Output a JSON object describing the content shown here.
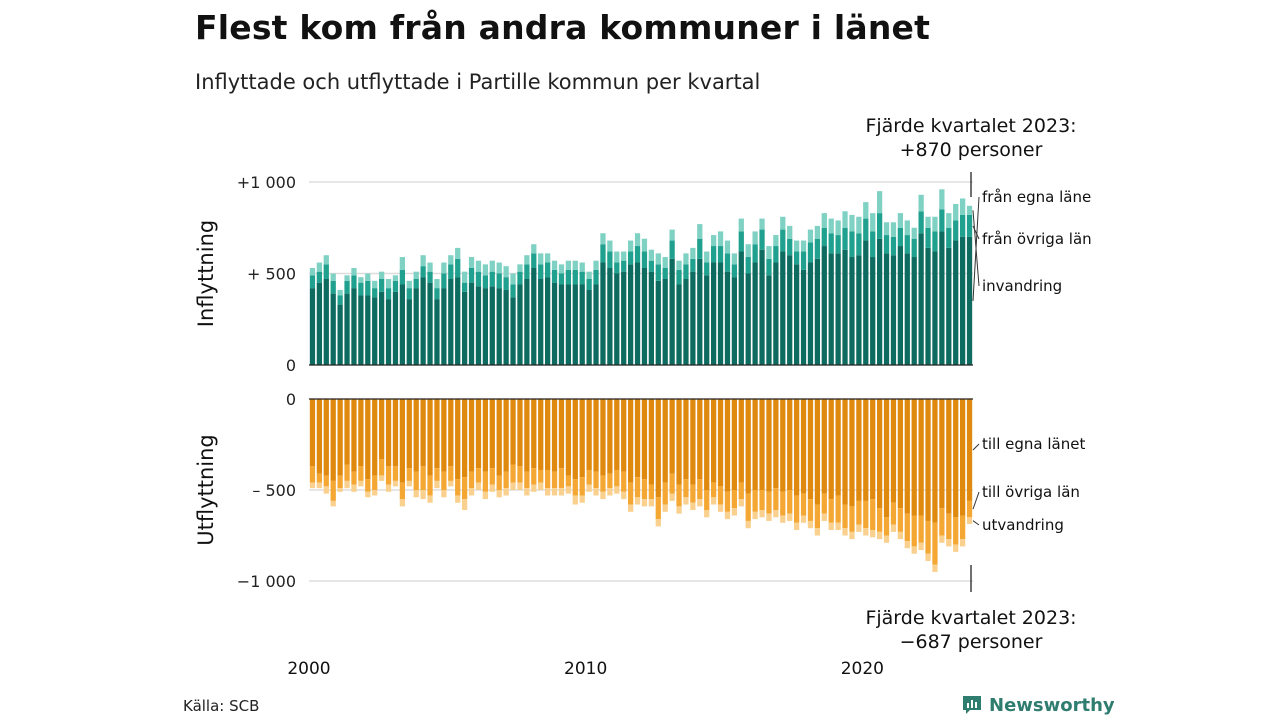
{
  "header": {
    "title": "Flest kom från andra kommuner i länet",
    "subtitle": "Inflyttade och utflyttade i Partille kommun per kvartal"
  },
  "footer": {
    "source": "Källa: SCB",
    "brand": "Newsworthy"
  },
  "colors": {
    "in_egna": "#0e6b5f",
    "in_ovriga": "#20a08e",
    "in_invandring": "#7fd1c3",
    "out_egna": "#e0890f",
    "out_ovriga": "#f4a733",
    "out_utvandring": "#f9d08e",
    "grid": "#dddddd",
    "brand": "#2e7d6e"
  },
  "chart_data": {
    "type": "bar",
    "stacked": true,
    "x_start_year": 2000,
    "periods_per_year": 4,
    "xticks": [
      "2000",
      "2010",
      "2020"
    ],
    "panels": [
      {
        "ylabel": "Inflyttning",
        "ylim": [
          0,
          1000
        ],
        "yticks": [
          {
            "value": 1000,
            "label": "+1 000"
          },
          {
            "value": 500,
            "label": "+  500"
          },
          {
            "value": 0,
            "label": "0"
          }
        ],
        "annotation": [
          "Fjärde kvartalet 2023:",
          "+870 personer"
        ],
        "series": [
          {
            "name": "från egna läne",
            "values": [
              420,
              450,
              470,
              390,
              330,
              390,
              420,
              380,
              380,
              370,
              400,
              360,
              400,
              440,
              360,
              420,
              480,
              450,
              360,
              420,
              470,
              480,
              400,
              450,
              430,
              420,
              430,
              420,
              410,
              370,
              440,
              470,
              530,
              470,
              480,
              450,
              440,
              440,
              440,
              440,
              410,
              440,
              560,
              530,
              500,
              510,
              550,
              560,
              530,
              510,
              460,
              470,
              580,
              440,
              470,
              510,
              580,
              490,
              560,
              560,
              510,
              480,
              620,
              500,
              560,
              630,
              490,
              560,
              620,
              600,
              550,
              520,
              560,
              580,
              650,
              610,
              610,
              630,
              590,
              600,
              680,
              590,
              690,
              610,
              600,
              650,
              610,
              590,
              720,
              640,
              620,
              730,
              640,
              680,
              700,
              700
            ]
          },
          {
            "name": "från övriga län",
            "values": [
              70,
              60,
              80,
              70,
              50,
              70,
              70,
              70,
              80,
              50,
              70,
              60,
              60,
              80,
              60,
              50,
              60,
              60,
              60,
              80,
              80,
              100,
              50,
              80,
              80,
              70,
              80,
              80,
              70,
              70,
              70,
              80,
              80,
              80,
              80,
              70,
              60,
              80,
              80,
              70,
              60,
              80,
              100,
              90,
              60,
              60,
              70,
              90,
              90,
              60,
              90,
              60,
              100,
              80,
              80,
              70,
              110,
              70,
              90,
              90,
              100,
              70,
              110,
              90,
              100,
              110,
              90,
              90,
              120,
              90,
              70,
              100,
              110,
              110,
              100,
              110,
              100,
              120,
              140,
              120,
              120,
              140,
              140,
              100,
              100,
              100,
              100,
              100,
              120,
              110,
              110,
              120,
              110,
              110,
              120,
              120
            ]
          },
          {
            "name": "invandring",
            "values": [
              40,
              50,
              50,
              40,
              30,
              30,
              40,
              30,
              40,
              40,
              40,
              50,
              30,
              70,
              40,
              40,
              60,
              50,
              50,
              60,
              50,
              60,
              60,
              60,
              60,
              60,
              60,
              60,
              60,
              60,
              40,
              50,
              50,
              60,
              50,
              50,
              50,
              50,
              50,
              50,
              40,
              50,
              60,
              60,
              60,
              50,
              60,
              70,
              70,
              60,
              60,
              60,
              60,
              50,
              60,
              60,
              80,
              60,
              60,
              80,
              70,
              60,
              70,
              70,
              70,
              60,
              70,
              60,
              70,
              70,
              60,
              60,
              70,
              70,
              80,
              80,
              80,
              90,
              90,
              90,
              90,
              100,
              120,
              70,
              80,
              80,
              80,
              60,
              90,
              60,
              80,
              110,
              80,
              90,
              90,
              50
            ]
          }
        ]
      },
      {
        "ylabel": "Utflyttning",
        "ylim": [
          -1000,
          0
        ],
        "yticks": [
          {
            "value": 0,
            "label": "0"
          },
          {
            "value": -500,
            "label": "–  500"
          },
          {
            "value": -1000,
            "label": "−1 000"
          }
        ],
        "annotation": [
          "Fjärde kvartalet 2023:",
          "−687 personer"
        ],
        "series": [
          {
            "name": "till egna länet",
            "values": [
              -370,
              -410,
              -420,
              -450,
              -420,
              -360,
              -400,
              -370,
              -440,
              -420,
              -330,
              -370,
              -370,
              -460,
              -380,
              -400,
              -370,
              -420,
              -380,
              -400,
              -370,
              -440,
              -430,
              -400,
              -380,
              -400,
              -380,
              -420,
              -400,
              -360,
              -370,
              -400,
              -380,
              -390,
              -390,
              -400,
              -380,
              -420,
              -440,
              -430,
              -390,
              -400,
              -420,
              -410,
              -390,
              -400,
              -460,
              -430,
              -440,
              -470,
              -540,
              -460,
              -410,
              -470,
              -440,
              -470,
              -440,
              -500,
              -460,
              -480,
              -510,
              -500,
              -460,
              -520,
              -500,
              -500,
              -510,
              -490,
              -510,
              -500,
              -530,
              -520,
              -550,
              -580,
              -520,
              -550,
              -530,
              -580,
              -590,
              -560,
              -560,
              -550,
              -600,
              -650,
              -570,
              -600,
              -630,
              -640,
              -640,
              -670,
              -680,
              -600,
              -630,
              -650,
              -640,
              -560
            ]
          },
          {
            "name": "till övriga län",
            "values": [
              -90,
              -50,
              -60,
              -110,
              -70,
              -90,
              -70,
              -80,
              -70,
              -80,
              -90,
              -100,
              -80,
              -90,
              -70,
              -100,
              -130,
              -110,
              -70,
              -100,
              -80,
              -90,
              -120,
              -90,
              -80,
              -110,
              -90,
              -80,
              -90,
              -100,
              -90,
              -90,
              -90,
              -70,
              -100,
              -90,
              -110,
              -60,
              -90,
              -100,
              -80,
              -90,
              -90,
              -80,
              -90,
              -110,
              -120,
              -110,
              -110,
              -80,
              -120,
              -120,
              -110,
              -120,
              -100,
              -100,
              -110,
              -110,
              -80,
              -100,
              -110,
              -100,
              -90,
              -150,
              -120,
              -110,
              -120,
              -120,
              -130,
              -130,
              -150,
              -120,
              -120,
              -130,
              -110,
              -130,
              -150,
              -130,
              -140,
              -130,
              -150,
              -170,
              -130,
              -100,
              -120,
              -130,
              -150,
              -170,
              -150,
              -180,
              -230,
              -150,
              -140,
              -150,
              -130,
              -90
            ]
          },
          {
            "name": "utvandring",
            "values": [
              -30,
              -30,
              -40,
              -30,
              -20,
              -40,
              -40,
              -30,
              -30,
              -30,
              -30,
              -40,
              -30,
              -40,
              -30,
              -40,
              -50,
              -40,
              -40,
              -40,
              -30,
              -40,
              -60,
              -40,
              -40,
              -40,
              -40,
              -40,
              -40,
              -40,
              -40,
              -40,
              -40,
              -40,
              -40,
              -40,
              -40,
              -40,
              -50,
              -40,
              -40,
              -40,
              -40,
              -40,
              -40,
              -40,
              -40,
              -40,
              -40,
              -40,
              -40,
              -40,
              -40,
              -40,
              -40,
              -40,
              -40,
              -40,
              -40,
              -40,
              -40,
              -40,
              -40,
              -40,
              -40,
              -40,
              -40,
              -40,
              -40,
              -40,
              -40,
              -40,
              -40,
              -40,
              -40,
              -40,
              -40,
              -40,
              -40,
              -40,
              -40,
              -40,
              -40,
              -40,
              -40,
              -40,
              -40,
              -40,
              -40,
              -40,
              -40,
              -40,
              -40,
              -40,
              -40,
              -37
            ]
          }
        ]
      }
    ]
  }
}
